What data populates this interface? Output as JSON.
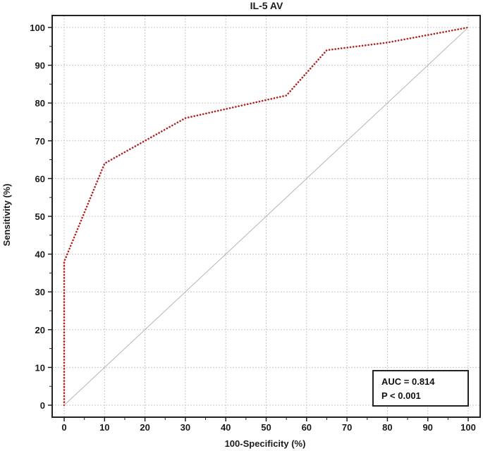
{
  "chart_data": {
    "type": "line",
    "title": "IL-5 AV",
    "xlabel": "100-Specificity (%)",
    "ylabel": "Sensitivity (%)",
    "xlim": [
      0,
      100
    ],
    "ylim": [
      0,
      100
    ],
    "xticks": [
      0,
      10,
      20,
      30,
      40,
      50,
      60,
      70,
      80,
      90,
      100
    ],
    "yticks": [
      0,
      10,
      20,
      30,
      40,
      50,
      60,
      70,
      80,
      90,
      100
    ],
    "grid": true,
    "series": [
      {
        "style": "dotted",
        "color": "#b22222",
        "x": [
          0,
          0,
          10,
          30,
          55,
          65,
          80,
          100
        ],
        "y": [
          0,
          38,
          64,
          76,
          82,
          94,
          96,
          100
        ]
      },
      {
        "style": "solid",
        "color": "#b5b5b5",
        "x": [
          0,
          100
        ],
        "y": [
          0,
          100
        ]
      }
    ],
    "annotations": {
      "auc": "AUC = 0.814",
      "p_value": "P < 0.001"
    }
  }
}
